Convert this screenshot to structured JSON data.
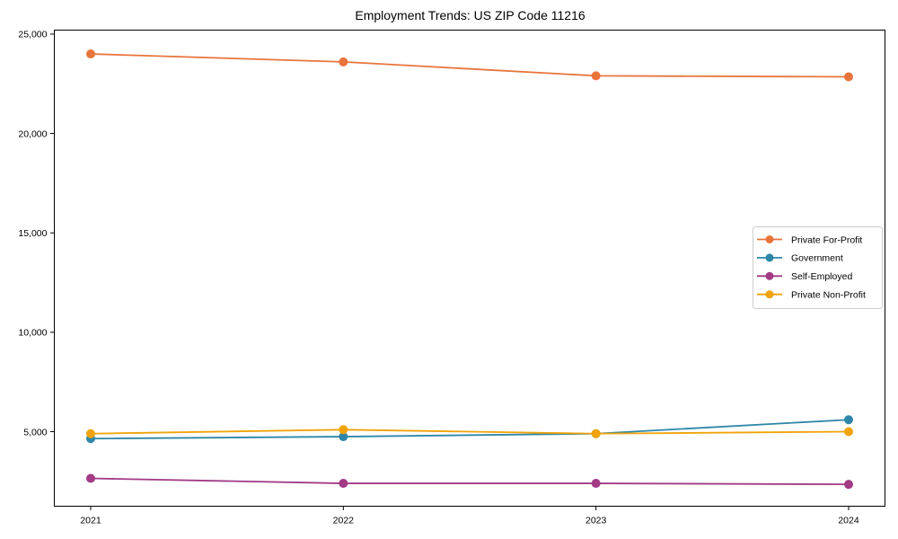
{
  "chart_data": {
    "type": "line",
    "title": "Employment Trends: US ZIP Code 11216",
    "categories": [
      "2021",
      "2022",
      "2023",
      "2024"
    ],
    "series": [
      {
        "name": "Private For-Profit",
        "color": "#e8743b",
        "values": [
          24000,
          23600,
          22900,
          22850
        ]
      },
      {
        "name": "Government",
        "color": "#2e87a8",
        "values": [
          4650,
          4750,
          4900,
          5600
        ]
      },
      {
        "name": "Self-Employed",
        "color": "#a23a85",
        "values": [
          2650,
          2400,
          2400,
          2350
        ]
      },
      {
        "name": "Private Non-Profit",
        "color": "#f0a30a",
        "values": [
          4900,
          5100,
          4900,
          5000
        ]
      }
    ],
    "xlabel": "",
    "ylabel": "",
    "ylim": [
      1250,
      25200
    ],
    "yticks": [
      5000,
      10000,
      15000,
      20000,
      25000
    ],
    "grid": false,
    "frame": true,
    "marker": "circle",
    "legend_position": "right-center",
    "axis_color": "#000000",
    "legend_border_color": "#cccccc",
    "tick_label_format": "comma"
  }
}
